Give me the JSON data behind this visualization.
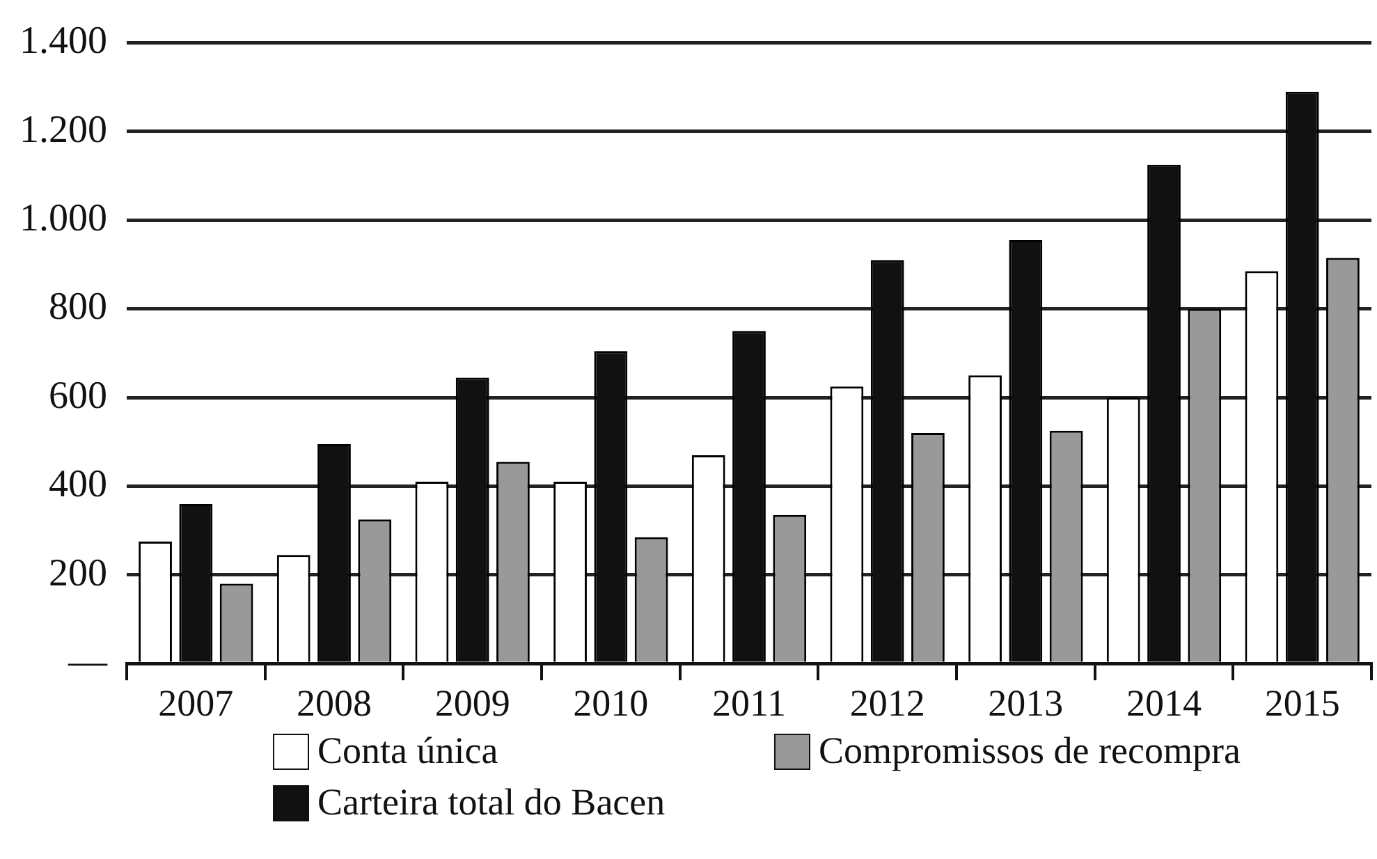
{
  "chart_data": {
    "type": "bar",
    "categories": [
      "2007",
      "2008",
      "2009",
      "2010",
      "2011",
      "2012",
      "2013",
      "2014",
      "2015"
    ],
    "series": [
      {
        "name": "Conta única",
        "color": "#ffffff",
        "values": [
          275,
          245,
          410,
          410,
          470,
          625,
          650,
          600,
          885
        ]
      },
      {
        "name": "Carteira total do Bacen",
        "color": "#111111",
        "values": [
          360,
          495,
          645,
          705,
          750,
          910,
          955,
          1125,
          1290
        ]
      },
      {
        "name": "Compromissos de recompra",
        "color": "#999999",
        "values": [
          180,
          325,
          455,
          285,
          335,
          520,
          525,
          800,
          915
        ]
      }
    ],
    "ylim": [
      0,
      1400
    ],
    "yticks": [
      {
        "value": 0,
        "label": "—"
      },
      200,
      400,
      600,
      800,
      {
        "value": 1000,
        "label": "1.000"
      },
      {
        "value": 1200,
        "label": "1.200"
      },
      {
        "value": 1400,
        "label": "1.400"
      }
    ],
    "grid": "y",
    "legend": "bottom"
  }
}
